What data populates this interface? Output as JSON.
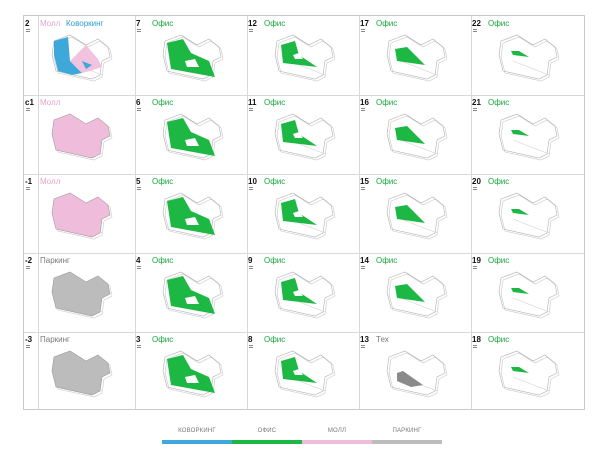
{
  "colors": {
    "office": "#1db844",
    "mall": "#f0bcdc",
    "coworking": "#3ea8db",
    "parking": "#bcbcbc",
    "tech": "#8a8a8a"
  },
  "floors": [
    {
      "number": "2",
      "labels": [
        {
          "text": "Молл",
          "type": "mall"
        },
        {
          "text": "Коворкинг",
          "type": "coworking"
        }
      ],
      "plan": "mixed"
    },
    {
      "number": "с1",
      "labels": [
        {
          "text": "Молл",
          "type": "mall"
        }
      ],
      "plan": "mall"
    },
    {
      "number": "-1",
      "labels": [
        {
          "text": "Молл",
          "type": "mall"
        }
      ],
      "plan": "mall"
    },
    {
      "number": "-2",
      "labels": [
        {
          "text": "Паркинг",
          "type": "parking"
        }
      ],
      "plan": "parking"
    },
    {
      "number": "-3",
      "labels": [
        {
          "text": "Паркинг",
          "type": "parking"
        }
      ],
      "plan": "parking"
    },
    {
      "number": "7",
      "labels": [
        {
          "text": "Офис",
          "type": "office"
        }
      ],
      "plan": "office-large"
    },
    {
      "number": "6",
      "labels": [
        {
          "text": "Офис",
          "type": "office"
        }
      ],
      "plan": "office-large"
    },
    {
      "number": "5",
      "labels": [
        {
          "text": "Офис",
          "type": "office"
        }
      ],
      "plan": "office-large"
    },
    {
      "number": "4",
      "labels": [
        {
          "text": "Офис",
          "type": "office"
        }
      ],
      "plan": "office-large"
    },
    {
      "number": "3",
      "labels": [
        {
          "text": "Офис",
          "type": "office"
        }
      ],
      "plan": "office-large"
    },
    {
      "number": "12",
      "labels": [
        {
          "text": "Офис",
          "type": "office"
        }
      ],
      "plan": "office-mid"
    },
    {
      "number": "11",
      "labels": [
        {
          "text": "Офис",
          "type": "office"
        }
      ],
      "plan": "office-mid"
    },
    {
      "number": "10",
      "labels": [
        {
          "text": "Офис",
          "type": "office"
        }
      ],
      "plan": "office-mid"
    },
    {
      "number": "9",
      "labels": [
        {
          "text": "Офис",
          "type": "office"
        }
      ],
      "plan": "office-mid"
    },
    {
      "number": "8",
      "labels": [
        {
          "text": "Офис",
          "type": "office"
        }
      ],
      "plan": "office-mid"
    },
    {
      "number": "17",
      "labels": [
        {
          "text": "Офис",
          "type": "office"
        }
      ],
      "plan": "office-small"
    },
    {
      "number": "16",
      "labels": [
        {
          "text": "Офис",
          "type": "office"
        }
      ],
      "plan": "office-small"
    },
    {
      "number": "15",
      "labels": [
        {
          "text": "Офис",
          "type": "office"
        }
      ],
      "plan": "office-small"
    },
    {
      "number": "14",
      "labels": [
        {
          "text": "Офис",
          "type": "office"
        }
      ],
      "plan": "office-small"
    },
    {
      "number": "13",
      "labels": [
        {
          "text": "Тех",
          "type": "tech"
        }
      ],
      "plan": "tech"
    },
    {
      "number": "22",
      "labels": [
        {
          "text": "Офис",
          "type": "office"
        }
      ],
      "plan": "office-tiny"
    },
    {
      "number": "21",
      "labels": [
        {
          "text": "Офис",
          "type": "office"
        }
      ],
      "plan": "office-tiny"
    },
    {
      "number": "20",
      "labels": [
        {
          "text": "Офис",
          "type": "office"
        }
      ],
      "plan": "office-tiny"
    },
    {
      "number": "19",
      "labels": [
        {
          "text": "Офис",
          "type": "office"
        }
      ],
      "plan": "office-tiny"
    },
    {
      "number": "18",
      "labels": [
        {
          "text": "Офис",
          "type": "office"
        }
      ],
      "plan": "office-tiny"
    }
  ],
  "legend": [
    {
      "label": "КОВОРКИНГ",
      "type": "coworking"
    },
    {
      "label": "ОФИС",
      "type": "office"
    },
    {
      "label": "МОЛЛ",
      "type": "mall"
    },
    {
      "label": "ПАРКИНГ",
      "type": "parking"
    }
  ]
}
